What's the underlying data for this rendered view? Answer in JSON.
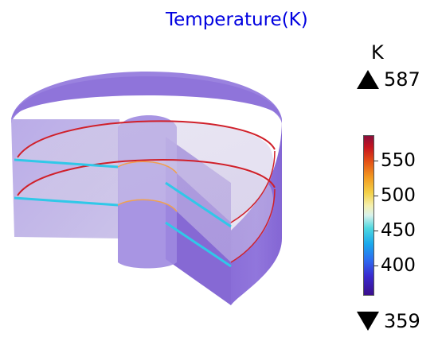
{
  "title": "Temperature(K)",
  "unit": "K",
  "max_value": "587",
  "min_value": "359",
  "colorbar": {
    "min": 359,
    "max": 587,
    "ticks": [
      {
        "value": 550,
        "label": "550"
      },
      {
        "value": 500,
        "label": "500"
      },
      {
        "value": 450,
        "label": "450"
      },
      {
        "value": 400,
        "label": "400"
      }
    ]
  },
  "colors": {
    "title": "#0000e0",
    "body_fill": "#8b6fd8",
    "body_dark": "#7a5cc9",
    "hot_edge": "#d0202a",
    "cool_band": "#30c8e8"
  }
}
